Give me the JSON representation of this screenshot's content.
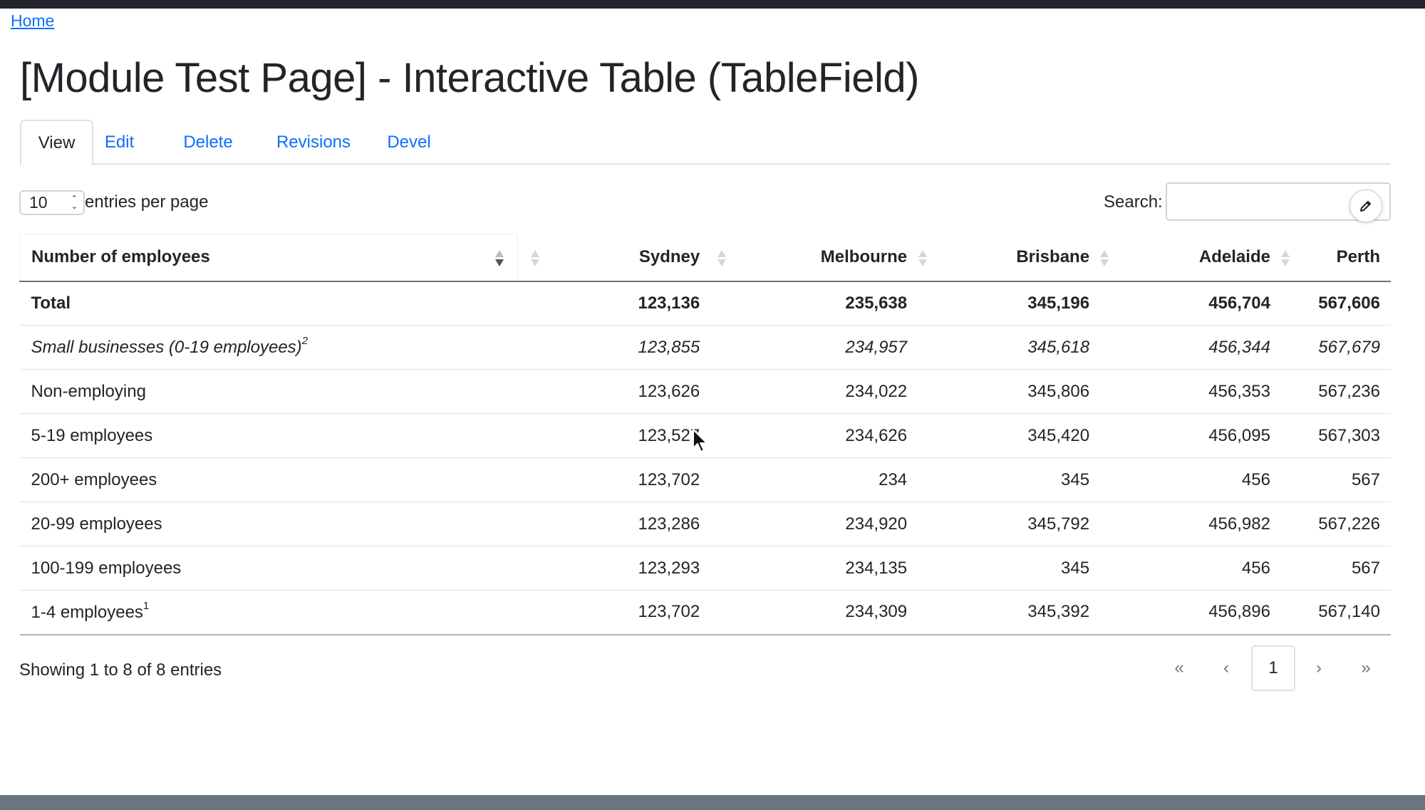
{
  "breadcrumb": {
    "home": "Home"
  },
  "page": {
    "title": "[Module Test Page] - Interactive Table (TableField)"
  },
  "tabs": [
    {
      "label": "View",
      "active": true
    },
    {
      "label": "Edit"
    },
    {
      "label": "Delete"
    },
    {
      "label": "Revisions"
    },
    {
      "label": "Devel"
    }
  ],
  "length": {
    "value": "10",
    "label": "entries per page"
  },
  "search": {
    "label": "Search:",
    "value": "",
    "button_icon": "pencil-icon"
  },
  "table": {
    "columns": [
      "Number of employees",
      "",
      "Sydney",
      "Melbourne",
      "Brisbane",
      "Adelaide",
      "Perth"
    ],
    "rows": [
      {
        "style": "bold",
        "label": "Total",
        "sup": "",
        "values": [
          "123,136",
          "235,638",
          "345,196",
          "456,704",
          "567,606"
        ]
      },
      {
        "style": "italic",
        "label": "Small businesses (0-19 employees)",
        "sup": "2",
        "values": [
          "123,855",
          "234,957",
          "345,618",
          "456,344",
          "567,679"
        ]
      },
      {
        "style": "normal",
        "label": "Non-employing",
        "sup": "",
        "values": [
          "123,626",
          "234,022",
          "345,806",
          "456,353",
          "567,236"
        ]
      },
      {
        "style": "normal",
        "label": "5-19 employees",
        "sup": "",
        "values": [
          "123,527",
          "234,626",
          "345,420",
          "456,095",
          "567,303"
        ]
      },
      {
        "style": "normal",
        "label": "200+ employees",
        "sup": "",
        "values": [
          "123,702",
          "234",
          "345",
          "456",
          "567"
        ]
      },
      {
        "style": "normal",
        "label": "20-99 employees",
        "sup": "",
        "values": [
          "123,286",
          "234,920",
          "345,792",
          "456,982",
          "567,226"
        ]
      },
      {
        "style": "normal",
        "label": "100-199 employees",
        "sup": "",
        "values": [
          "123,293",
          "234,135",
          "345",
          "456",
          "567"
        ]
      },
      {
        "style": "normal",
        "label": "1-4 employees",
        "sup": "1",
        "values": [
          "123,702",
          "234,309",
          "345,392",
          "456,896",
          "567,140"
        ]
      }
    ]
  },
  "info": "Showing 1 to 8 of 8 entries",
  "pagination": {
    "first": "«",
    "prev": "‹",
    "current": "1",
    "next": "›",
    "last": "»"
  },
  "colors": {
    "link": "#0d6efd",
    "text": "#212529",
    "topbar": "#212529",
    "footer": "#6c757d"
  }
}
